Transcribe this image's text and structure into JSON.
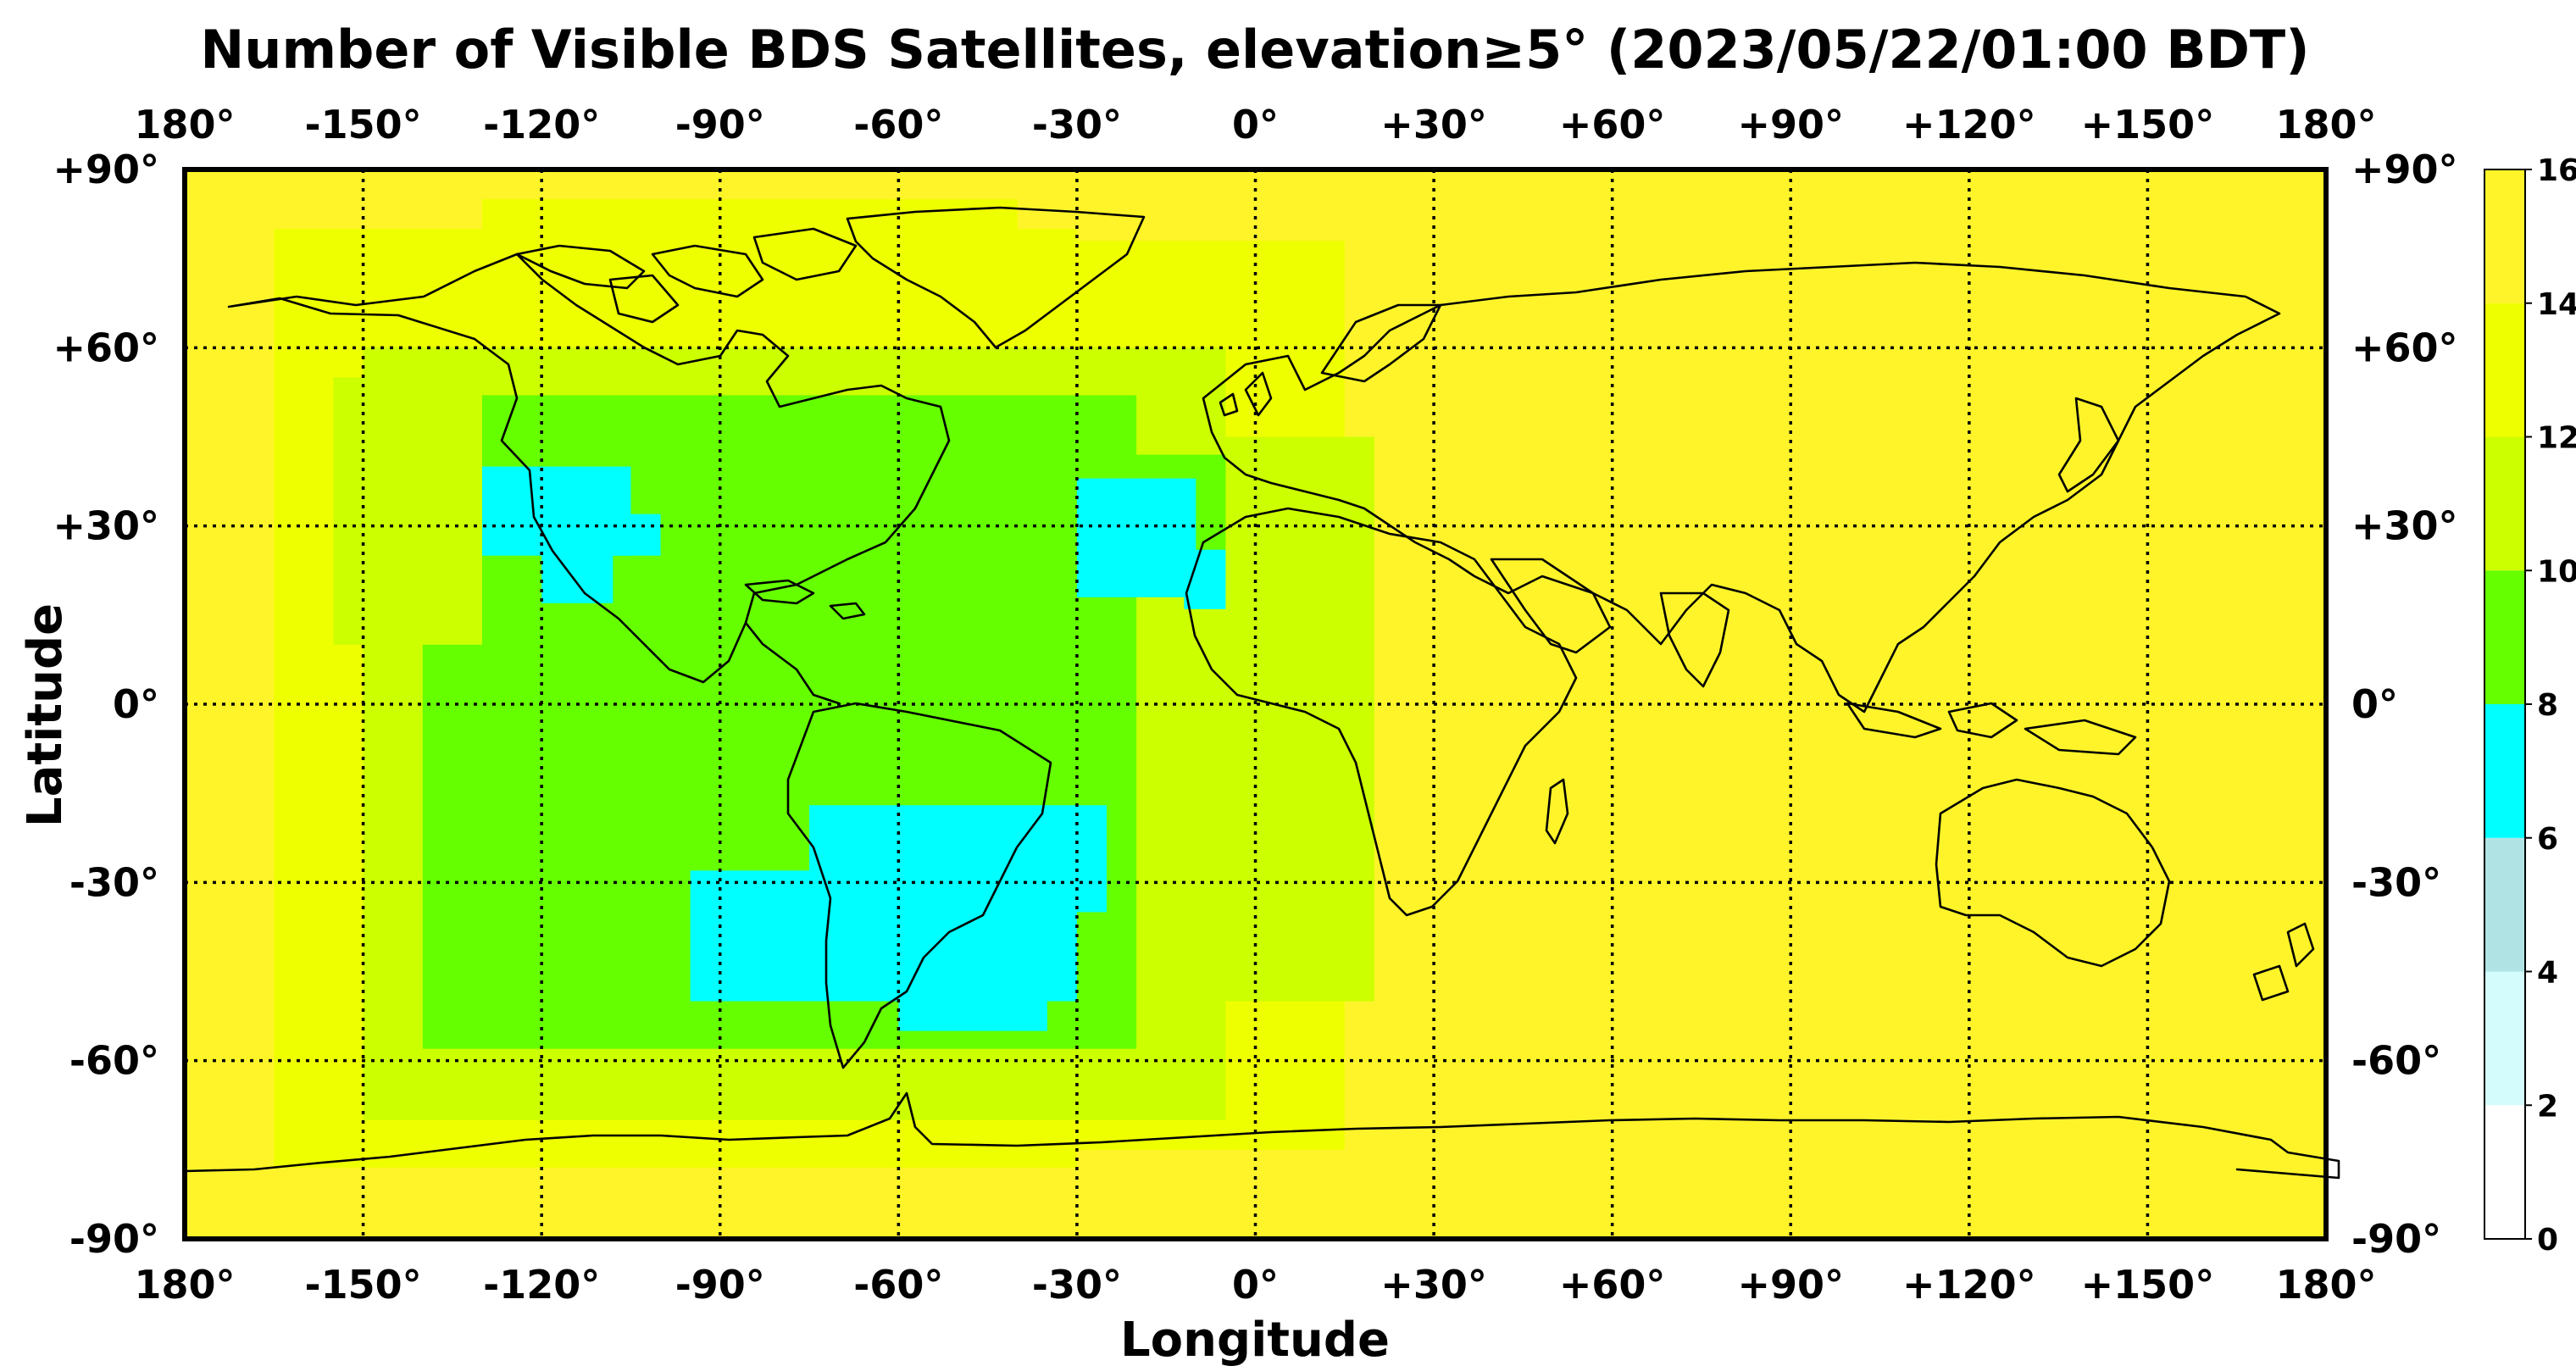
{
  "title": "Number of Visible BDS Satellites, elevation≥5° (2023/05/22/01:00 BDT)",
  "chart_data": {
    "type": "heatmap",
    "title": "Number of Visible BDS Satellites, elevation≥5° (2023/05/22/01:00 BDT)",
    "xlabel": "Longitude",
    "ylabel": "Latitude",
    "xlim": [
      -180,
      180
    ],
    "ylim": [
      -90,
      90
    ],
    "grid": true,
    "x_ticks": [
      -180,
      -150,
      -120,
      -90,
      -60,
      -30,
      0,
      30,
      60,
      90,
      120,
      150,
      180
    ],
    "y_ticks": [
      90,
      60,
      30,
      0,
      -30,
      -60,
      -90
    ],
    "x_tick_labels": [
      "180°",
      "-150°",
      "-120°",
      "-90°",
      "-60°",
      "-30°",
      "0°",
      "+30°",
      "+60°",
      "+90°",
      "+120°",
      "+150°",
      "180°"
    ],
    "y_tick_labels": [
      "+90°",
      "+60°",
      "+30°",
      "0°",
      "-30°",
      "-60°",
      "-90°"
    ],
    "colorbar": {
      "ticks": [
        "0",
        "2",
        "4",
        "6",
        "8",
        "10",
        "12",
        "14",
        "16"
      ],
      "bins": [
        {
          "from": 0,
          "to": 2,
          "color": "#ffffff"
        },
        {
          "from": 2,
          "to": 4,
          "color": "#d4fcfc"
        },
        {
          "from": 4,
          "to": 6,
          "color": "#b0e4e4"
        },
        {
          "from": 6,
          "to": 8,
          "color": "#00ffff"
        },
        {
          "from": 8,
          "to": 10,
          "color": "#66ff00"
        },
        {
          "from": 10,
          "to": 12,
          "color": "#ccff00"
        },
        {
          "from": 12,
          "to": 14,
          "color": "#eeff00"
        },
        {
          "from": 14,
          "to": 16,
          "color": "#fff42a"
        }
      ]
    },
    "background_value": 15,
    "regions": [
      {
        "value": 13,
        "lon": [
          -165,
          -30
        ],
        "lat": [
          -78,
          80
        ]
      },
      {
        "value": 13,
        "lon": [
          -30,
          15
        ],
        "lat": [
          -75,
          78
        ]
      },
      {
        "value": 13,
        "lon": [
          -130,
          -40
        ],
        "lat": [
          78,
          85
        ]
      },
      {
        "value": 11,
        "lon": [
          -150,
          -5
        ],
        "lat": [
          -70,
          60
        ]
      },
      {
        "value": 11,
        "lon": [
          -20,
          20
        ],
        "lat": [
          -50,
          45
        ]
      },
      {
        "value": 9,
        "lon": [
          -140,
          -20
        ],
        "lat": [
          -58,
          52
        ]
      },
      {
        "value": 9,
        "lon": [
          -30,
          -5
        ],
        "lat": [
          20,
          42
        ]
      },
      {
        "value": 11,
        "lon": [
          -155,
          -130
        ],
        "lat": [
          10,
          55
        ]
      },
      {
        "value": 7,
        "lon": [
          -130,
          -105
        ],
        "lat": [
          25,
          40
        ]
      },
      {
        "value": 7,
        "lon": [
          -120,
          -108
        ],
        "lat": [
          17,
          30
        ]
      },
      {
        "value": 7,
        "lon": [
          -108,
          -100
        ],
        "lat": [
          25,
          32
        ]
      },
      {
        "value": 7,
        "lon": [
          -75,
          -25
        ],
        "lat": [
          -35,
          -17
        ]
      },
      {
        "value": 7,
        "lon": [
          -95,
          -30
        ],
        "lat": [
          -50,
          -28
        ]
      },
      {
        "value": 7,
        "lon": [
          -60,
          -35
        ],
        "lat": [
          -55,
          -45
        ]
      },
      {
        "value": 7,
        "lon": [
          -30,
          -10
        ],
        "lat": [
          18,
          38
        ]
      },
      {
        "value": 7,
        "lon": [
          -12,
          -5
        ],
        "lat": [
          16,
          26
        ]
      }
    ]
  }
}
